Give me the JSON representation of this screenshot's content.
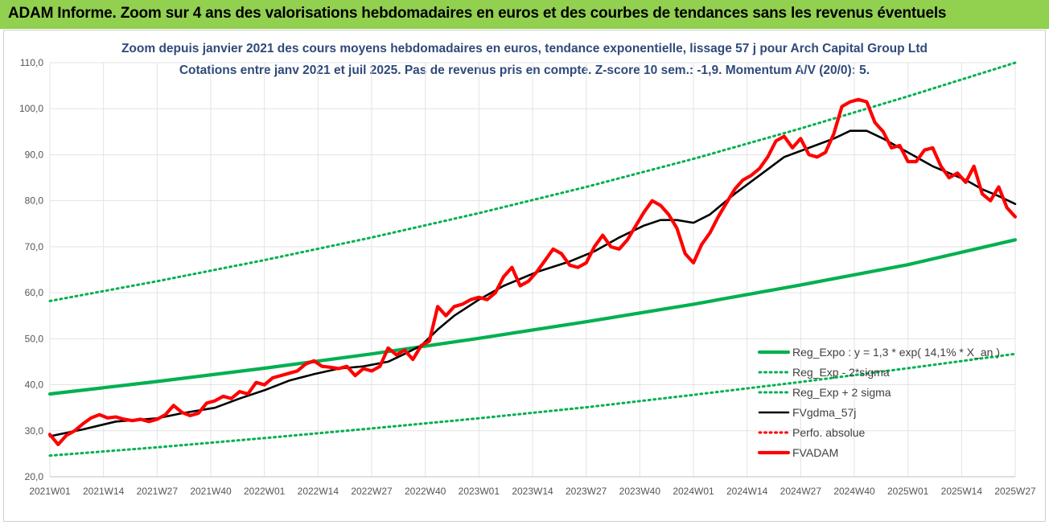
{
  "banner": {
    "title": "ADAM Informe. Zoom sur 4 ans des valorisations hebdomadaires en euros et des courbes de tendances sans les revenus éventuels",
    "color": "#92d050"
  },
  "chart_data": {
    "type": "line",
    "title": "Zoom depuis janvier 2021 des cours moyens hebdomadaires en euros, tendance exponentielle, lissage 57 j pour Arch Capital Group Ltd",
    "subtitle": "Cotations entre janv 2021 et juil 2025. Pas de revenus pris en compte. Z-score 10 sem.: -1,9. Momentum A/V (20/0): 5.",
    "xlabel": "",
    "ylabel": "",
    "ylim": [
      20,
      110
    ],
    "yticks": [
      "20,0",
      "30,0",
      "40,0",
      "50,0",
      "60,0",
      "70,0",
      "80,0",
      "90,0",
      "100,0",
      "110,0"
    ],
    "xticks": [
      {
        "label": "2021W01",
        "week": 0
      },
      {
        "label": "2021W14",
        "week": 13
      },
      {
        "label": "2021W27",
        "week": 26
      },
      {
        "label": "2021W40",
        "week": 39
      },
      {
        "label": "2022W01",
        "week": 52
      },
      {
        "label": "2022W14",
        "week": 65
      },
      {
        "label": "2022W27",
        "week": 78
      },
      {
        "label": "2022W40",
        "week": 91
      },
      {
        "label": "2023W01",
        "week": 104
      },
      {
        "label": "2023W14",
        "week": 117
      },
      {
        "label": "2023W27",
        "week": 130
      },
      {
        "label": "2023W40",
        "week": 143
      },
      {
        "label": "2024W01",
        "week": 156
      },
      {
        "label": "2024W14",
        "week": 169
      },
      {
        "label": "2024W27",
        "week": 182
      },
      {
        "label": "2024W40",
        "week": 195
      },
      {
        "label": "2025W01",
        "week": 208
      },
      {
        "label": "2025W14",
        "week": 221
      },
      {
        "label": "2025W27",
        "week": 234
      }
    ],
    "grid": true,
    "legend_position": "bottom-right",
    "series": [
      {
        "name": "Reg_Expo : y = 1,3 * exp( 14,1% *  X_an )",
        "style": "solid-thick",
        "color": "#00b050",
        "points": [
          [
            0,
            38.0
          ],
          [
            26,
            40.7
          ],
          [
            52,
            43.6
          ],
          [
            78,
            46.7
          ],
          [
            104,
            50.1
          ],
          [
            130,
            53.7
          ],
          [
            156,
            57.5
          ],
          [
            182,
            61.7
          ],
          [
            208,
            66.1
          ],
          [
            234,
            71.5
          ]
        ]
      },
      {
        "name": "Reg_Exp - 2*sigma",
        "style": "dotted",
        "color": "#00b050",
        "points": [
          [
            0,
            24.6
          ],
          [
            26,
            26.4
          ],
          [
            52,
            28.4
          ],
          [
            78,
            30.5
          ],
          [
            104,
            32.7
          ],
          [
            130,
            35.1
          ],
          [
            156,
            37.8
          ],
          [
            182,
            40.6
          ],
          [
            208,
            43.6
          ],
          [
            234,
            46.7
          ]
        ]
      },
      {
        "name": "Reg_Exp + 2 sigma",
        "style": "dotted",
        "color": "#00b050",
        "points": [
          [
            0,
            58.2
          ],
          [
            26,
            62.5
          ],
          [
            52,
            67.1
          ],
          [
            78,
            72.0
          ],
          [
            104,
            77.3
          ],
          [
            130,
            83.0
          ],
          [
            156,
            89.1
          ],
          [
            182,
            95.7
          ],
          [
            208,
            102.7
          ],
          [
            234,
            110.0
          ]
        ]
      },
      {
        "name": "FVgdma_57j",
        "style": "solid",
        "color": "#000000",
        "points": [
          [
            0,
            28.8
          ],
          [
            8,
            30.3
          ],
          [
            16,
            32.0
          ],
          [
            26,
            32.7
          ],
          [
            32,
            33.8
          ],
          [
            40,
            35.0
          ],
          [
            46,
            37.0
          ],
          [
            52,
            38.8
          ],
          [
            58,
            40.9
          ],
          [
            64,
            42.3
          ],
          [
            70,
            43.5
          ],
          [
            76,
            44.0
          ],
          [
            82,
            45.0
          ],
          [
            86,
            46.7
          ],
          [
            90,
            48.5
          ],
          [
            94,
            52.0
          ],
          [
            98,
            55.0
          ],
          [
            104,
            58.5
          ],
          [
            110,
            61.5
          ],
          [
            118,
            64.5
          ],
          [
            126,
            66.8
          ],
          [
            132,
            69.0
          ],
          [
            138,
            72.0
          ],
          [
            144,
            74.6
          ],
          [
            148,
            75.8
          ],
          [
            152,
            75.8
          ],
          [
            156,
            75.2
          ],
          [
            160,
            77.0
          ],
          [
            166,
            81.5
          ],
          [
            172,
            85.5
          ],
          [
            178,
            89.5
          ],
          [
            184,
            91.5
          ],
          [
            190,
            93.5
          ],
          [
            194,
            95.2
          ],
          [
            198,
            95.2
          ],
          [
            202,
            93.5
          ],
          [
            206,
            91.5
          ],
          [
            210,
            89.5
          ],
          [
            214,
            87.5
          ],
          [
            218,
            86.0
          ],
          [
            222,
            84.5
          ],
          [
            226,
            82.5
          ],
          [
            230,
            81.0
          ],
          [
            234,
            79.3
          ]
        ]
      },
      {
        "name": "Perfo. absolue",
        "style": "dotted",
        "color": "#ff0000",
        "points": []
      },
      {
        "name": "FVADAM",
        "style": "solid-thick",
        "color": "#ff0000",
        "points": [
          [
            0,
            29.2
          ],
          [
            2,
            27.0
          ],
          [
            4,
            29.0
          ],
          [
            6,
            30.0
          ],
          [
            8,
            31.5
          ],
          [
            10,
            32.8
          ],
          [
            12,
            33.5
          ],
          [
            14,
            32.8
          ],
          [
            16,
            33.0
          ],
          [
            18,
            32.5
          ],
          [
            20,
            32.2
          ],
          [
            22,
            32.5
          ],
          [
            24,
            32.0
          ],
          [
            26,
            32.5
          ],
          [
            28,
            33.5
          ],
          [
            30,
            35.5
          ],
          [
            32,
            34.0
          ],
          [
            34,
            33.3
          ],
          [
            36,
            33.8
          ],
          [
            38,
            36.0
          ],
          [
            40,
            36.5
          ],
          [
            42,
            37.5
          ],
          [
            44,
            37.0
          ],
          [
            46,
            38.5
          ],
          [
            48,
            38.0
          ],
          [
            50,
            40.5
          ],
          [
            52,
            40.0
          ],
          [
            54,
            41.5
          ],
          [
            56,
            42.0
          ],
          [
            58,
            42.5
          ],
          [
            60,
            43.0
          ],
          [
            62,
            44.5
          ],
          [
            64,
            45.2
          ],
          [
            66,
            44.0
          ],
          [
            68,
            43.8
          ],
          [
            70,
            43.5
          ],
          [
            72,
            44.0
          ],
          [
            74,
            42.0
          ],
          [
            76,
            43.5
          ],
          [
            78,
            43.0
          ],
          [
            80,
            44.0
          ],
          [
            82,
            48.0
          ],
          [
            84,
            46.5
          ],
          [
            86,
            47.5
          ],
          [
            88,
            45.5
          ],
          [
            90,
            48.5
          ],
          [
            92,
            49.5
          ],
          [
            94,
            57.0
          ],
          [
            96,
            55.0
          ],
          [
            98,
            57.0
          ],
          [
            100,
            57.5
          ],
          [
            102,
            58.5
          ],
          [
            104,
            59.0
          ],
          [
            106,
            58.5
          ],
          [
            108,
            60.0
          ],
          [
            110,
            63.5
          ],
          [
            112,
            65.5
          ],
          [
            114,
            61.5
          ],
          [
            116,
            62.5
          ],
          [
            118,
            64.5
          ],
          [
            120,
            67.0
          ],
          [
            122,
            69.5
          ],
          [
            124,
            68.5
          ],
          [
            126,
            66.0
          ],
          [
            128,
            65.5
          ],
          [
            130,
            66.5
          ],
          [
            132,
            70.0
          ],
          [
            134,
            72.5
          ],
          [
            136,
            70.0
          ],
          [
            138,
            69.5
          ],
          [
            140,
            71.5
          ],
          [
            142,
            74.5
          ],
          [
            144,
            77.5
          ],
          [
            146,
            80.0
          ],
          [
            148,
            79.0
          ],
          [
            150,
            77.0
          ],
          [
            152,
            74.0
          ],
          [
            154,
            68.5
          ],
          [
            156,
            66.5
          ],
          [
            158,
            70.5
          ],
          [
            160,
            73.0
          ],
          [
            162,
            76.5
          ],
          [
            164,
            79.5
          ],
          [
            166,
            82.5
          ],
          [
            168,
            84.5
          ],
          [
            170,
            85.5
          ],
          [
            172,
            87.0
          ],
          [
            174,
            89.5
          ],
          [
            176,
            93.0
          ],
          [
            178,
            94.0
          ],
          [
            180,
            91.5
          ],
          [
            182,
            93.5
          ],
          [
            184,
            90.0
          ],
          [
            186,
            89.5
          ],
          [
            188,
            90.5
          ],
          [
            190,
            94.5
          ],
          [
            192,
            100.5
          ],
          [
            194,
            101.5
          ],
          [
            196,
            102.0
          ],
          [
            198,
            101.5
          ],
          [
            200,
            97.0
          ],
          [
            202,
            95.0
          ],
          [
            204,
            91.5
          ],
          [
            206,
            92.0
          ],
          [
            208,
            88.5
          ],
          [
            210,
            88.5
          ],
          [
            212,
            91.0
          ],
          [
            214,
            91.5
          ],
          [
            216,
            87.5
          ],
          [
            218,
            85.0
          ],
          [
            220,
            86.0
          ],
          [
            222,
            84.0
          ],
          [
            224,
            87.5
          ],
          [
            226,
            81.5
          ],
          [
            228,
            80.0
          ],
          [
            230,
            83.0
          ],
          [
            232,
            78.5
          ],
          [
            234,
            76.5
          ]
        ]
      }
    ]
  }
}
